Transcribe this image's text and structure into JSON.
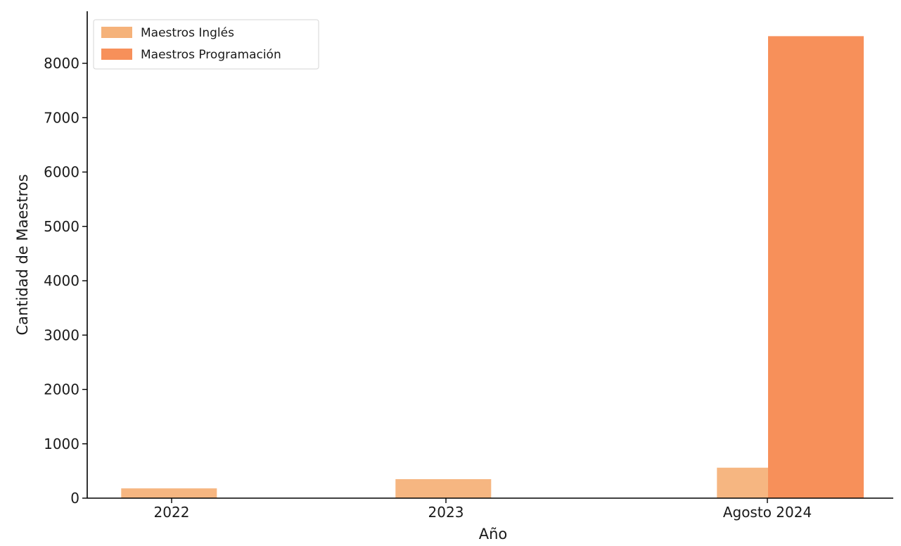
{
  "chart_data": {
    "type": "bar",
    "title": "",
    "xlabel": "Año",
    "ylabel": "Cantidad de Maestros",
    "categories": [
      "2022",
      "2023",
      "Agosto 2024"
    ],
    "series": [
      {
        "name": "Maestros Inglés",
        "values": [
          180,
          350,
          560
        ],
        "color": "#f5b27a"
      },
      {
        "name": "Maestros Programación",
        "values": [
          0,
          0,
          8500
        ],
        "color": "#f7905a"
      }
    ],
    "ylim": [
      0,
      8900
    ],
    "yticks": [
      0,
      1000,
      2000,
      3000,
      4000,
      5000,
      6000,
      7000,
      8000
    ],
    "grid": false,
    "legend_position": "top-left"
  }
}
